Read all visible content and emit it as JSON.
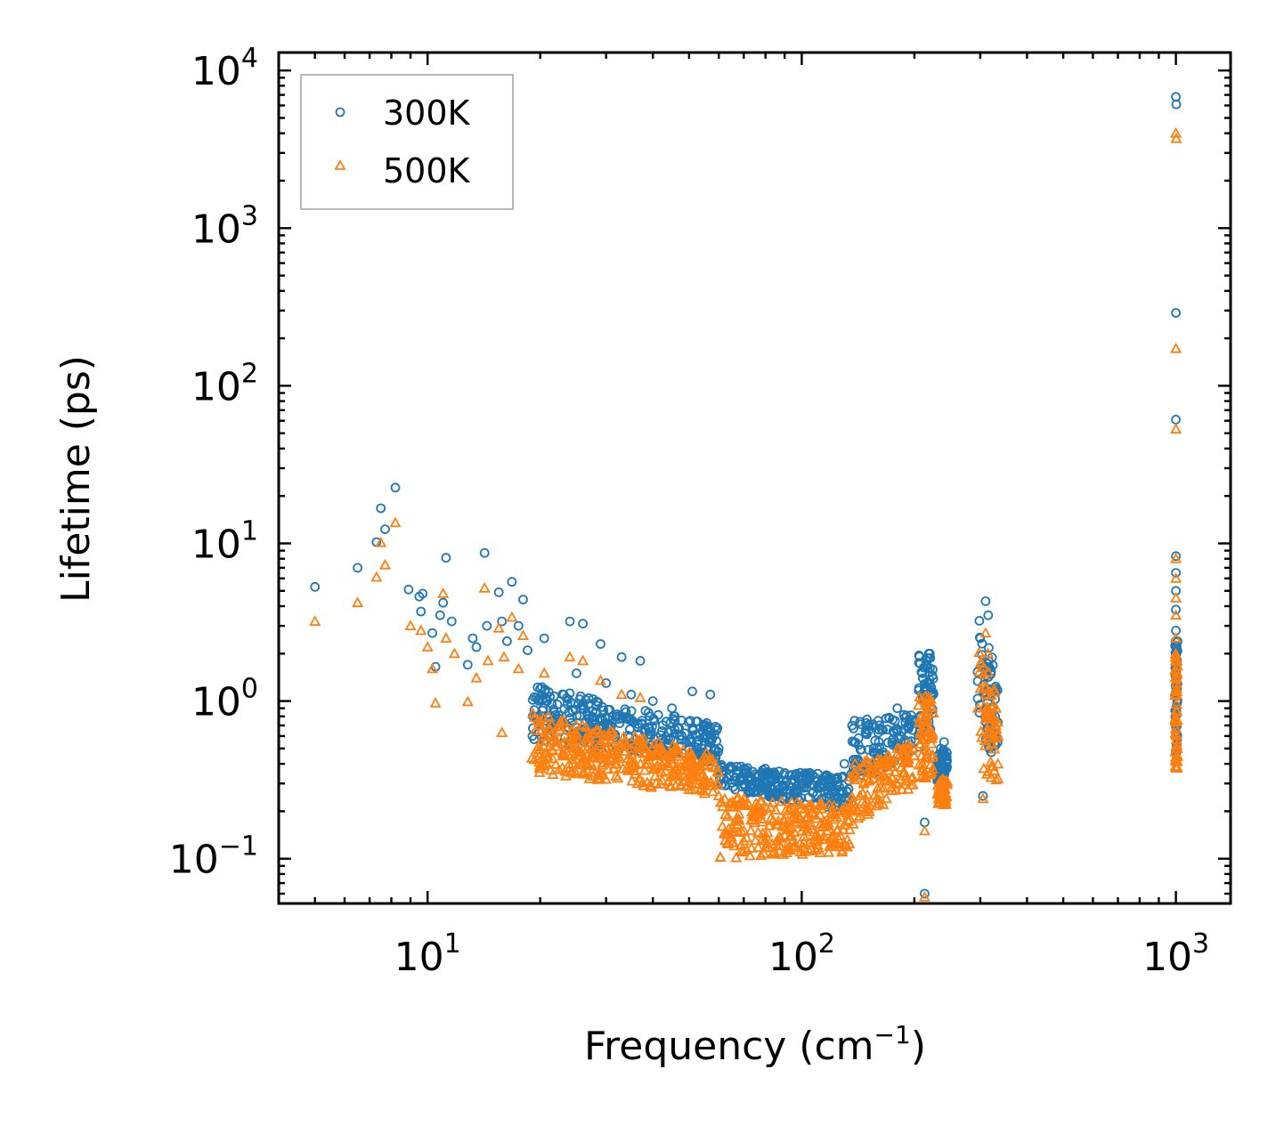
{
  "chart_data": {
    "type": "scatter",
    "xscale": "log",
    "yscale": "log",
    "xlabel": "Frequency (cm",
    "xlabel_sup": "−1",
    "xlabel_end": ")",
    "ylabel": "Lifetime (ps)",
    "xlim": [
      4,
      1400
    ],
    "ylim": [
      0.052,
      13000
    ],
    "x_ticks": [
      {
        "value": 10,
        "base": "10",
        "exp": "1"
      },
      {
        "value": 100,
        "base": "10",
        "exp": "2"
      },
      {
        "value": 1000,
        "base": "10",
        "exp": "3"
      }
    ],
    "y_ticks": [
      {
        "value": 0.1,
        "base": "10",
        "exp": "−1"
      },
      {
        "value": 1,
        "base": "10",
        "exp": "0"
      },
      {
        "value": 10,
        "base": "10",
        "exp": "1"
      },
      {
        "value": 100,
        "base": "10",
        "exp": "2"
      },
      {
        "value": 1000,
        "base": "10",
        "exp": "3"
      },
      {
        "value": 10000,
        "base": "10",
        "exp": "4"
      }
    ],
    "legend_position": "top-left",
    "series": [
      {
        "name": "300K",
        "marker": "circle",
        "color": "#1f77b4",
        "points": [
          [
            5.0,
            5.3
          ],
          [
            6.5,
            7.0
          ],
          [
            7.3,
            10.2
          ],
          [
            7.5,
            16.7
          ],
          [
            7.7,
            12.3
          ],
          [
            8.2,
            22.6
          ],
          [
            8.9,
            5.1
          ],
          [
            9.5,
            4.6
          ],
          [
            9.7,
            4.8
          ],
          [
            9.6,
            3.7
          ],
          [
            10.3,
            2.7
          ],
          [
            10.5,
            1.65
          ],
          [
            11.2,
            8.1
          ],
          [
            11.0,
            4.2
          ],
          [
            10.8,
            3.5
          ],
          [
            11.6,
            3.2
          ],
          [
            12.8,
            1.7
          ],
          [
            13.2,
            2.5
          ],
          [
            13.5,
            2.2
          ],
          [
            14.2,
            8.7
          ],
          [
            14.4,
            3.0
          ],
          [
            15.5,
            4.9
          ],
          [
            15.8,
            3.2
          ],
          [
            16.3,
            2.4
          ],
          [
            16.8,
            5.7
          ],
          [
            17.5,
            3.0
          ],
          [
            18.0,
            4.4
          ],
          [
            18.5,
            2.1
          ],
          [
            20.5,
            2.5
          ],
          [
            24.0,
            3.2
          ],
          [
            26.0,
            3.1
          ],
          [
            29.0,
            2.3
          ],
          [
            33.0,
            1.9
          ],
          [
            37.0,
            1.8
          ],
          [
            51.0,
            1.15
          ],
          [
            57.0,
            1.1
          ],
          [
            20.0,
            1.2
          ],
          [
            25.0,
            1.5
          ],
          [
            30.0,
            1.3
          ],
          [
            35.0,
            1.1
          ],
          [
            40.0,
            1.0
          ],
          [
            45.0,
            0.9
          ],
          [
            55.0,
            0.7
          ],
          [
            60.0,
            0.5
          ],
          [
            70.0,
            0.35
          ],
          [
            80.0,
            0.3
          ],
          [
            90.0,
            0.35
          ],
          [
            100.0,
            0.3
          ],
          [
            110.0,
            0.28
          ],
          [
            120.0,
            0.3
          ],
          [
            130.0,
            0.4
          ],
          [
            150.0,
            0.7
          ],
          [
            160.0,
            0.75
          ],
          [
            180.0,
            0.9
          ],
          [
            210.0,
            1.5
          ],
          [
            220.0,
            2.0
          ],
          [
            240.0,
            0.55
          ],
          [
            300.0,
            2.5
          ],
          [
            310.0,
            4.3
          ],
          [
            315.0,
            3.5
          ],
          [
            330.0,
            1.2
          ],
          [
            305.0,
            0.25
          ],
          [
            213.0,
            0.17
          ],
          [
            213.0,
            0.06
          ],
          [
            1000.0,
            6800
          ],
          [
            1002.0,
            6100
          ],
          [
            1000.0,
            290
          ],
          [
            1000.0,
            61
          ],
          [
            1000.0,
            8.3
          ],
          [
            1000.0,
            6.5
          ],
          [
            1000.0,
            5.0
          ],
          [
            1000.0,
            3.8
          ],
          [
            1000.0,
            2.8
          ],
          [
            1000.0,
            2.0
          ]
        ],
        "bands": [
          {
            "x": [
              19,
              60
            ],
            "y_high": [
              1.3,
              0.7
            ],
            "y_low": [
              0.55,
              0.4
            ]
          },
          {
            "x": [
              60,
              135
            ],
            "y_high": [
              0.4,
              0.33
            ],
            "y_low": [
              0.28,
              0.2
            ]
          },
          {
            "x": [
              135,
              200
            ],
            "y_high": [
              0.75,
              0.85
            ],
            "y_low": [
              0.3,
              0.45
            ]
          },
          {
            "x": [
              205,
              225
            ],
            "y_high": [
              2.0,
              2.0
            ],
            "y_low": [
              0.5,
              0.7
            ]
          },
          {
            "x": [
              230,
              245
            ],
            "y_high": [
              0.5,
              0.5
            ],
            "y_low": [
              0.3,
              0.3
            ]
          },
          {
            "x": [
              295,
              335
            ],
            "y_high": [
              3.5,
              1.5
            ],
            "y_low": [
              0.6,
              0.4
            ]
          },
          {
            "x": [
              995,
              1010
            ],
            "y_high": [
              2.5,
              2.5
            ],
            "y_low": [
              0.45,
              0.45
            ]
          }
        ]
      },
      {
        "name": "500K",
        "marker": "triangle",
        "color": "#ff7f0e",
        "points": [
          [
            5.0,
            3.2
          ],
          [
            6.5,
            4.2
          ],
          [
            7.3,
            6.1
          ],
          [
            7.5,
            10.1
          ],
          [
            7.7,
            7.3
          ],
          [
            8.2,
            13.5
          ],
          [
            9.0,
            3.0
          ],
          [
            9.6,
            2.8
          ],
          [
            10.0,
            2.2
          ],
          [
            10.3,
            1.6
          ],
          [
            10.5,
            0.97
          ],
          [
            11.0,
            4.8
          ],
          [
            11.2,
            2.5
          ],
          [
            11.8,
            2.0
          ],
          [
            12.8,
            0.99
          ],
          [
            13.5,
            1.4
          ],
          [
            14.2,
            5.2
          ],
          [
            14.5,
            1.8
          ],
          [
            15.5,
            2.9
          ],
          [
            16.0,
            1.9
          ],
          [
            16.8,
            3.4
          ],
          [
            17.5,
            1.6
          ],
          [
            18.0,
            2.6
          ],
          [
            15.8,
            0.63
          ],
          [
            20.5,
            1.5
          ],
          [
            24.0,
            1.9
          ],
          [
            26.0,
            1.8
          ],
          [
            29.0,
            1.35
          ],
          [
            33.0,
            1.1
          ],
          [
            37.0,
            1.05
          ],
          [
            20.0,
            0.7
          ],
          [
            25.0,
            0.6
          ],
          [
            30.0,
            0.55
          ],
          [
            35.0,
            0.5
          ],
          [
            40.0,
            0.45
          ],
          [
            45.0,
            0.4
          ],
          [
            55.0,
            0.3
          ],
          [
            60.0,
            0.25
          ],
          [
            70.0,
            0.13
          ],
          [
            80.0,
            0.13
          ],
          [
            90.0,
            0.14
          ],
          [
            100.0,
            0.15
          ],
          [
            110.0,
            0.13
          ],
          [
            120.0,
            0.12
          ],
          [
            130.0,
            0.2
          ],
          [
            150.0,
            0.35
          ],
          [
            160.0,
            0.4
          ],
          [
            180.0,
            0.5
          ],
          [
            210.0,
            0.4
          ],
          [
            220.0,
            1.0
          ],
          [
            240.0,
            0.28
          ],
          [
            300.0,
            1.2
          ],
          [
            310.0,
            2.7
          ],
          [
            315.0,
            2.0
          ],
          [
            330.0,
            0.7
          ],
          [
            305.0,
            0.24
          ],
          [
            213.0,
            0.15
          ],
          [
            213.0,
            0.057
          ],
          [
            1000.0,
            4000
          ],
          [
            1002.0,
            3700
          ],
          [
            1000.0,
            172
          ],
          [
            1000.0,
            53
          ],
          [
            1000.0,
            8.0
          ],
          [
            1000.0,
            6.0
          ],
          [
            1000.0,
            4.5
          ],
          [
            1000.0,
            3.5
          ],
          [
            1000.0,
            2.5
          ],
          [
            1000.0,
            1.8
          ]
        ],
        "bands": [
          {
            "x": [
              19,
              60
            ],
            "y_high": [
              0.85,
              0.45
            ],
            "y_low": [
              0.35,
              0.25
            ]
          },
          {
            "x": [
              60,
              135
            ],
            "y_high": [
              0.25,
              0.22
            ],
            "y_low": [
              0.1,
              0.11
            ]
          },
          {
            "x": [
              135,
              200
            ],
            "y_high": [
              0.4,
              0.55
            ],
            "y_low": [
              0.16,
              0.28
            ]
          },
          {
            "x": [
              205,
              225
            ],
            "y_high": [
              1.1,
              1.1
            ],
            "y_low": [
              0.3,
              0.35
            ]
          },
          {
            "x": [
              230,
              245
            ],
            "y_high": [
              0.32,
              0.32
            ],
            "y_low": [
              0.22,
              0.22
            ]
          },
          {
            "x": [
              295,
              335
            ],
            "y_high": [
              2.5,
              1.0
            ],
            "y_low": [
              0.35,
              0.3
            ]
          },
          {
            "x": [
              995,
              1010
            ],
            "y_high": [
              2.0,
              2.0
            ],
            "y_low": [
              0.37,
              0.37
            ]
          }
        ]
      }
    ]
  }
}
